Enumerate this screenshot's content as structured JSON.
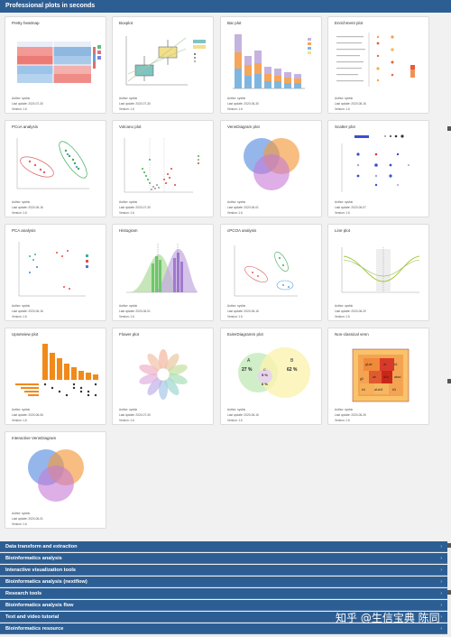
{
  "header": {
    "title": "Professional plots in seconds"
  },
  "cards": [
    {
      "title": "Pretty heatmap",
      "author": "Author: sysbio",
      "updated": "Last update: 2020-07-30",
      "version": "Version: 1.6"
    },
    {
      "title": "Boxplot",
      "author": "Author: sysbio",
      "updated": "Last update: 2020-07-30",
      "version": "Version: 1.6"
    },
    {
      "title": "Bar plot",
      "author": "Author: sysbio",
      "updated": "Last update: 2020-06-30",
      "version": "Version: 1.6"
    },
    {
      "title": "Enrichment plot",
      "author": "Author: sysbio",
      "updated": "Last update: 2020-08-16",
      "version": "Version: 1.6"
    },
    {
      "title": "PCoA analysis",
      "author": "Author: sysbio",
      "updated": "Last update: 2020-06-16",
      "version": "Version: 1.6"
    },
    {
      "title": "Volcano plot",
      "author": "Author: sysbio",
      "updated": "Last update: 2020-07-30",
      "version": "Version: 1.6"
    },
    {
      "title": "VennDiagram plot",
      "author": "Author: sysbio",
      "updated": "Last update: 2020-06-01",
      "version": "Version: 1.6"
    },
    {
      "title": "Scatter plot",
      "author": "Author: sysbio",
      "updated": "Last update: 2020-06-07",
      "version": "Version: 1.6"
    },
    {
      "title": "PCA analysis",
      "author": "Author: sysbio",
      "updated": "Last update: 2020-06-16",
      "version": "Version: 1.6"
    },
    {
      "title": "Histogram",
      "author": "Author: sysbio",
      "updated": "Last update: 2020-06-01",
      "version": "Version: 1.6"
    },
    {
      "title": "cPCOA analysis",
      "author": "Author: sysbio",
      "updated": "Last update: 2020-06-16",
      "version": "Version: 1.6"
    },
    {
      "title": "Line plot",
      "author": "Author: sysbio",
      "updated": "Last update: 2020-06-20",
      "version": "Version: 1.6"
    },
    {
      "title": "Upsetview plot",
      "author": "Author: sysbio",
      "updated": "Last update: 2020-06-06",
      "version": "Version: 1.6"
    },
    {
      "title": "Flower plot",
      "author": "Author: sysbio",
      "updated": "Last update: 2020-07-30",
      "version": "Version: 1.6"
    },
    {
      "title": "EulerDiagramm plot",
      "author": "Author: sysbio",
      "updated": "Last update: 2020-06-16",
      "version": "Version: 1.6"
    },
    {
      "title": "Non-classical venn",
      "author": "Author: sysbio",
      "updated": "Last update: 2020-06-26",
      "version": "Version: 1.6"
    },
    {
      "title": "Interactive VennDiagram",
      "author": "Author: sysbio",
      "updated": "Last update: 2020-06-01",
      "version": "Version: 1.6"
    }
  ],
  "thumb_text": {
    "euler": {
      "a": "A",
      "b": "B",
      "c": "C",
      "a_pct": "27 %",
      "b_pct": "62 %",
      "c_pct": "5 %",
      "ab_pct": "6 %"
    },
    "venn_labels": [
      "g1ab",
      "a1",
      "b1",
      "ab",
      "g3",
      "a1b",
      "abcd",
      "b4",
      "a1cb3",
      "b3"
    ]
  },
  "sections": [
    {
      "label": "Data transform and extraction"
    },
    {
      "label": "Bioinformatics analysis"
    },
    {
      "label": "Interactive visualization tools"
    },
    {
      "label": "Bioinformatics analysis (nextflow)"
    },
    {
      "label": "Research tools"
    },
    {
      "label": "Bioinformatics analysis flow"
    },
    {
      "label": "Text and video tutorial"
    },
    {
      "label": "Bioinformatics resource"
    }
  ],
  "watermark": "知乎 @生信宝典 陈同",
  "colors": {
    "header_bg": "#2d5e93",
    "page_bg": "#eeeeee"
  }
}
